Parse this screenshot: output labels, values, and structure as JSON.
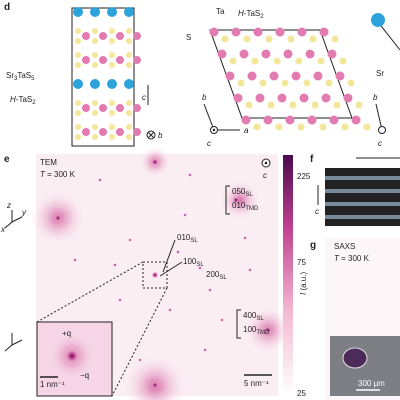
{
  "panel_d": {
    "label": "d",
    "stack_top": [
      "Sr",
      "3",
      "TaS",
      "5"
    ],
    "stack_bottom": [
      "H",
      "-TaS",
      "2"
    ],
    "axis_c": "c",
    "axis_b": "b",
    "layer_title": [
      "H",
      "-TaS",
      "2"
    ],
    "atom_ta": "Ta",
    "atom_s": "S",
    "layer_axis_b": "b",
    "layer_axis_a": "a",
    "layer_axis_c": "c",
    "right_atom": "Sr",
    "right_axis_b": "b",
    "right_axis_c": "c"
  },
  "panel_e": {
    "label": "e",
    "method": "TEM",
    "temperature": [
      "T",
      " = 300 K"
    ],
    "axis_c": "c",
    "peaks": [
      [
        "050",
        "SL"
      ],
      [
        "010",
        "TMD"
      ],
      [
        "010",
        "SL"
      ],
      [
        "100",
        "SL"
      ],
      [
        "200",
        "SL"
      ],
      [
        "400",
        "SL"
      ],
      [
        "100",
        "TMD"
      ]
    ],
    "scale_bar": "5 nm⁻¹",
    "inset_plus": "+q",
    "inset_minus": "−q",
    "inset_scale": "1 nm⁻¹",
    "colorbar": {
      "label": [
        "I",
        " (a.u.)"
      ],
      "ticks": [
        225,
        75,
        25
      ]
    }
  },
  "panel_f": {
    "label": "f",
    "axis_c": "c"
  },
  "panel_g": {
    "label": "g",
    "method": "SAXS",
    "temperature": [
      "T",
      " = 300 K"
    ],
    "scale": "300 μm"
  },
  "axes_side": {
    "z": "z",
    "y": "y",
    "x": "x"
  }
}
